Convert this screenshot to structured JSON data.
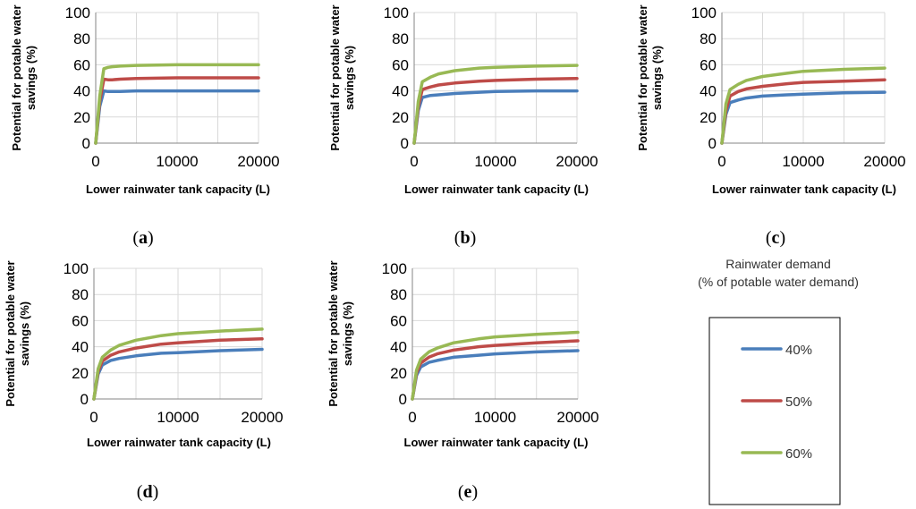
{
  "legend": {
    "title_line1": "Rainwater demand",
    "title_line2": "(% of potable water demand)",
    "entries": [
      "40%",
      "50%",
      "60%"
    ]
  },
  "colors": {
    "s40": "#4a7ebb",
    "s50": "#be4b48",
    "s60": "#98b954"
  },
  "chart_data": [
    {
      "type": "line",
      "panel": "a",
      "title": "",
      "xlabel": "Lower  rainwater tank capacity (L)",
      "ylabel_line1": "Potential for potable water",
      "ylabel_line2": "savings (%)",
      "xlim": [
        0,
        20000
      ],
      "ylim": [
        0,
        100
      ],
      "xticks": [
        0,
        10000,
        20000
      ],
      "yticks": [
        0,
        20,
        40,
        60,
        80,
        100
      ],
      "x": [
        0,
        500,
        1000,
        1500,
        2000,
        3000,
        5000,
        10000,
        15000,
        20000
      ],
      "series": [
        {
          "name": "40%",
          "values": [
            0,
            28,
            40,
            39.5,
            39.5,
            39.5,
            40,
            40,
            40,
            40
          ]
        },
        {
          "name": "50%",
          "values": [
            0,
            32,
            49,
            48.5,
            48.5,
            49,
            49.5,
            50,
            50,
            50
          ]
        },
        {
          "name": "60%",
          "values": [
            0,
            36,
            57,
            58,
            58.5,
            59,
            59.5,
            60,
            60,
            60
          ]
        }
      ]
    },
    {
      "type": "line",
      "panel": "b",
      "title": "",
      "xlabel": "Lower  rainwater tank capacity (L)",
      "ylabel_line1": "Potential for potable water",
      "ylabel_line2": "savings (%)",
      "xlim": [
        0,
        20000
      ],
      "ylim": [
        0,
        100
      ],
      "xticks": [
        0,
        10000,
        20000
      ],
      "yticks": [
        0,
        20,
        40,
        60,
        80,
        100
      ],
      "x": [
        0,
        500,
        1000,
        2000,
        3000,
        5000,
        8000,
        10000,
        15000,
        20000
      ],
      "series": [
        {
          "name": "40%",
          "values": [
            0,
            25,
            35,
            36.5,
            37,
            38,
            39,
            39.5,
            40,
            40
          ]
        },
        {
          "name": "50%",
          "values": [
            0,
            28,
            41,
            43,
            44.5,
            46,
            47.5,
            48,
            49,
            49.5
          ]
        },
        {
          "name": "60%",
          "values": [
            0,
            32,
            47,
            50.5,
            53,
            55.5,
            57.5,
            58,
            59,
            59.5
          ]
        }
      ]
    },
    {
      "type": "line",
      "panel": "c",
      "title": "",
      "xlabel": "Lower  rainwater tank capacity (L)",
      "ylabel_line1": "Potential for potable water",
      "ylabel_line2": "savings (%)",
      "xlim": [
        0,
        20000
      ],
      "ylim": [
        0,
        100
      ],
      "xticks": [
        0,
        10000,
        20000
      ],
      "yticks": [
        0,
        20,
        40,
        60,
        80,
        100
      ],
      "x": [
        0,
        500,
        1000,
        2000,
        3000,
        5000,
        8000,
        10000,
        15000,
        20000
      ],
      "series": [
        {
          "name": "40%",
          "values": [
            0,
            22,
            31,
            33,
            34.5,
            36,
            37,
            37.5,
            38.5,
            39
          ]
        },
        {
          "name": "50%",
          "values": [
            0,
            25,
            36,
            39.5,
            41.5,
            43.5,
            45.5,
            46.5,
            47.5,
            48.5
          ]
        },
        {
          "name": "60%",
          "values": [
            0,
            30,
            41,
            45,
            48,
            51,
            53.5,
            55,
            56.5,
            57.5
          ]
        }
      ]
    },
    {
      "type": "line",
      "panel": "d",
      "title": "",
      "xlabel": "Lower  rainwater tank capacity (L)",
      "ylabel_line1": "Potential for potable water",
      "ylabel_line2": "savings (%)",
      "xlim": [
        0,
        20000
      ],
      "ylim": [
        0,
        100
      ],
      "xticks": [
        0,
        10000,
        20000
      ],
      "yticks": [
        0,
        20,
        40,
        60,
        80,
        100
      ],
      "x": [
        0,
        500,
        1000,
        2000,
        3000,
        5000,
        8000,
        10000,
        15000,
        20000
      ],
      "series": [
        {
          "name": "40%",
          "values": [
            0,
            19,
            26,
            29.5,
            31,
            33,
            35,
            35.5,
            37,
            38
          ]
        },
        {
          "name": "50%",
          "values": [
            0,
            21,
            29,
            33.5,
            36,
            39,
            42,
            43,
            45,
            46
          ]
        },
        {
          "name": "60%",
          "values": [
            0,
            23,
            32,
            37.5,
            41,
            45,
            48.5,
            50,
            52,
            53.5
          ]
        }
      ]
    },
    {
      "type": "line",
      "panel": "e",
      "title": "",
      "xlabel": "Lower  rainwater tank capacity (L)",
      "ylabel_line1": "Potential for potable water",
      "ylabel_line2": "savings (%)",
      "xlim": [
        0,
        20000
      ],
      "ylim": [
        0,
        100
      ],
      "xticks": [
        0,
        10000,
        20000
      ],
      "yticks": [
        0,
        20,
        40,
        60,
        80,
        100
      ],
      "x": [
        0,
        500,
        1000,
        2000,
        3000,
        5000,
        8000,
        10000,
        15000,
        20000
      ],
      "series": [
        {
          "name": "40%",
          "values": [
            0,
            18,
            24.5,
            28,
            29.5,
            32,
            33.5,
            34.5,
            36,
            37
          ]
        },
        {
          "name": "50%",
          "values": [
            0,
            20,
            27.5,
            32,
            34.5,
            37.5,
            40,
            41,
            43,
            44.5
          ]
        },
        {
          "name": "60%",
          "values": [
            0,
            22,
            30.5,
            36,
            39,
            43,
            46,
            47.5,
            49.5,
            51
          ]
        }
      ]
    }
  ],
  "panel_labels": [
    "a",
    "b",
    "c",
    "d",
    "e"
  ]
}
